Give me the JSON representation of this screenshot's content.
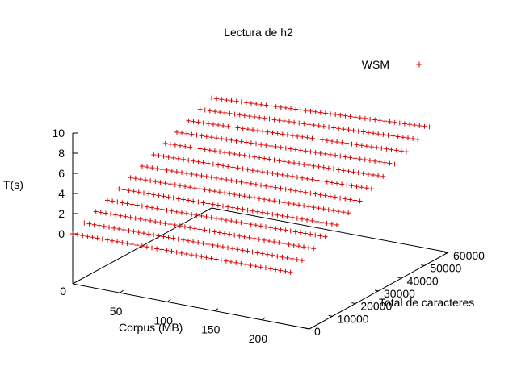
{
  "chart_data": {
    "type": "scatter",
    "title": "Lectura de h2",
    "xlabel": "Corpus (MB)",
    "ylabel": "Total de caracteres",
    "zlabel": "T(s)",
    "legend_position": "top-right",
    "grid": false,
    "xlim": [
      0,
      250
    ],
    "ylim": [
      0,
      60000
    ],
    "zlim": [
      0,
      10
    ],
    "x_ticks": [
      "50",
      "100",
      "150",
      "200"
    ],
    "y_ticks": [
      "0",
      "10000",
      "20000",
      "30000",
      "40000",
      "50000",
      "60000"
    ],
    "z_ticks": [
      "0",
      "2",
      "4",
      "6",
      "8",
      "10"
    ],
    "origin_tick": "0",
    "marker": "+",
    "series": [
      {
        "name": "WSM",
        "color": "#dd0000",
        "rows": [
          {
            "y": 0,
            "x_start": 0,
            "x_end": 230,
            "t_start": 0.0,
            "t_end": 0.3
          },
          {
            "y": 5000,
            "x_start": 0,
            "x_end": 230,
            "t_start": 0.45,
            "t_end": 0.85
          },
          {
            "y": 10000,
            "x_start": 0,
            "x_end": 230,
            "t_start": 0.95,
            "t_end": 1.4
          },
          {
            "y": 15000,
            "x_start": 0,
            "x_end": 230,
            "t_start": 1.45,
            "t_end": 1.95
          },
          {
            "y": 20000,
            "x_start": 0,
            "x_end": 230,
            "t_start": 1.95,
            "t_end": 2.5
          },
          {
            "y": 25000,
            "x_start": 0,
            "x_end": 230,
            "t_start": 2.45,
            "t_end": 3.05
          },
          {
            "y": 30000,
            "x_start": 0,
            "x_end": 230,
            "t_start": 2.95,
            "t_end": 3.6
          },
          {
            "y": 35000,
            "x_start": 0,
            "x_end": 230,
            "t_start": 3.45,
            "t_end": 4.2
          },
          {
            "y": 40000,
            "x_start": 0,
            "x_end": 230,
            "t_start": 3.95,
            "t_end": 4.8
          },
          {
            "y": 45000,
            "x_start": 0,
            "x_end": 230,
            "t_start": 4.45,
            "t_end": 5.4
          },
          {
            "y": 50000,
            "x_start": 0,
            "x_end": 230,
            "t_start": 4.95,
            "t_end": 6.0
          },
          {
            "y": 55000,
            "x_start": 0,
            "x_end": 230,
            "t_start": 5.45,
            "t_end": 6.6
          },
          {
            "y": 60000,
            "x_start": 0,
            "x_end": 230,
            "t_start": 5.95,
            "t_end": 7.2
          }
        ],
        "points_per_row": 45
      }
    ]
  }
}
